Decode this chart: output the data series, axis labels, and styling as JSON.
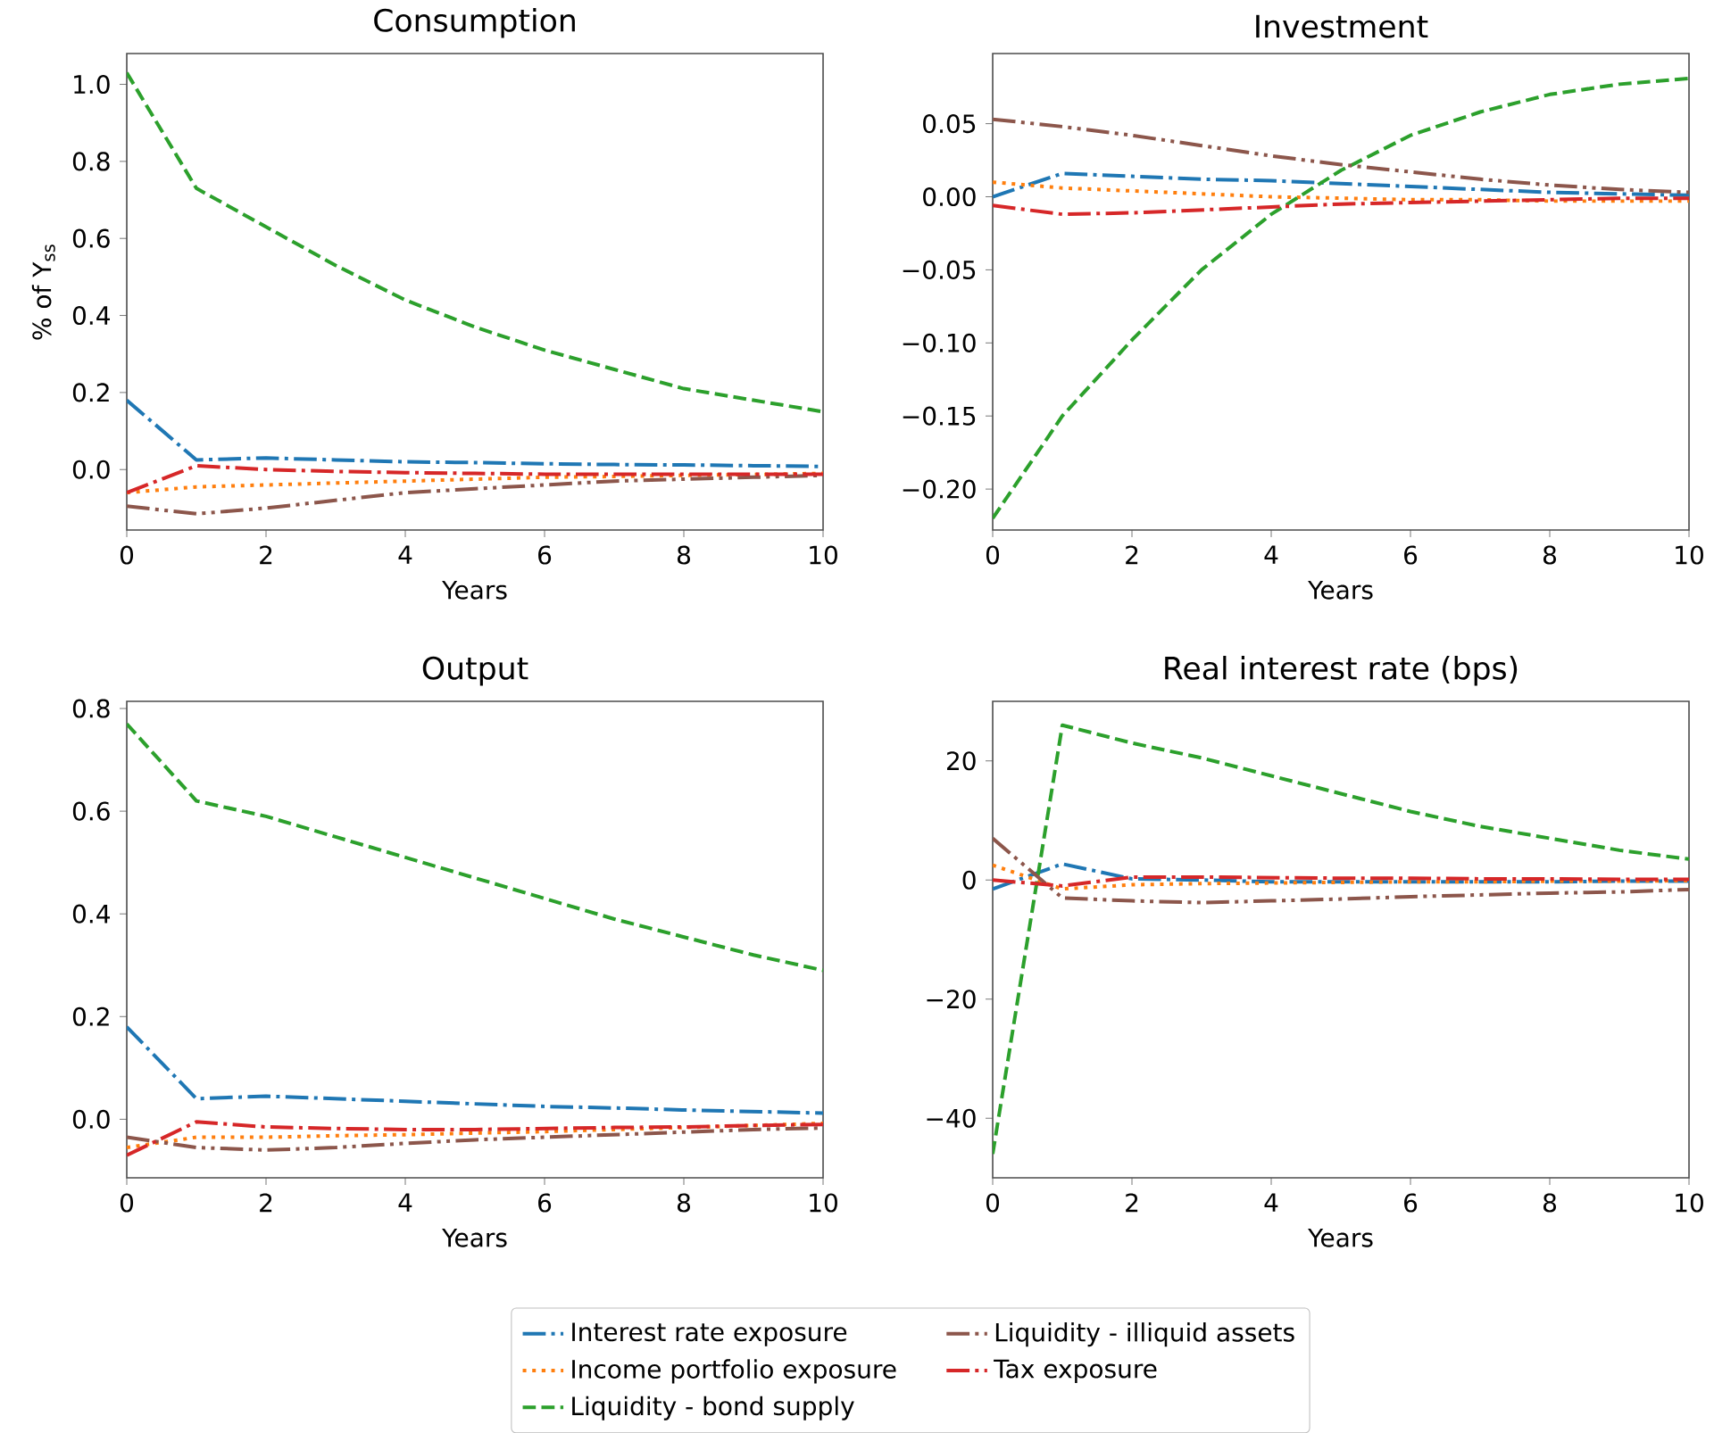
{
  "chart_data": [
    {
      "type": "line",
      "title": "Consumption",
      "xlabel": "Years",
      "ylabel": "% of Y$_{ss}$",
      "legend": "bottom",
      "x": [
        0,
        1,
        2,
        3,
        4,
        5,
        6,
        7,
        8,
        9,
        10
      ],
      "xlim": [
        0,
        10
      ],
      "xticks": [
        0,
        2,
        4,
        6,
        8,
        10
      ],
      "ylim": [
        -0.157,
        1.08
      ],
      "yticks": [
        {
          "value": 0,
          "label": "0.0"
        },
        {
          "value": 0.2,
          "label": "0.2"
        },
        {
          "value": 0.4,
          "label": "0.4"
        },
        {
          "value": 0.6,
          "label": "0.6"
        },
        {
          "value": 0.8,
          "label": "0.8"
        },
        {
          "value": 1.0,
          "label": "1.0"
        }
      ],
      "series": [
        {
          "name": "Interest rate exposure",
          "color": "#1f77b4",
          "line_style": "dashdot",
          "values": [
            0.18,
            0.025,
            0.03,
            0.025,
            0.02,
            0.018,
            0.015,
            0.013,
            0.012,
            0.01,
            0.008
          ]
        },
        {
          "name": "Income portfolio exposure",
          "color": "#ff7f0e",
          "line_style": "dotted",
          "values": [
            -0.06,
            -0.045,
            -0.04,
            -0.035,
            -0.03,
            -0.025,
            -0.02,
            -0.018,
            -0.015,
            -0.013,
            -0.01
          ]
        },
        {
          "name": "Liquidity - bond supply",
          "color": "#2ca02c",
          "line_style": "dashed",
          "values": [
            1.03,
            0.73,
            0.63,
            0.53,
            0.44,
            0.37,
            0.31,
            0.26,
            0.21,
            0.18,
            0.15
          ]
        },
        {
          "name": "Liquidity - illiquid assets",
          "color": "#8c564b",
          "line_style": "dashdotdot",
          "values": [
            -0.095,
            -0.115,
            -0.1,
            -0.08,
            -0.06,
            -0.05,
            -0.04,
            -0.03,
            -0.025,
            -0.02,
            -0.015
          ]
        },
        {
          "name": "Tax exposure",
          "color": "#d62728",
          "line_style": "dashdot",
          "values": [
            -0.06,
            0.01,
            0.0,
            -0.005,
            -0.008,
            -0.01,
            -0.012,
            -0.012,
            -0.012,
            -0.012,
            -0.012
          ]
        }
      ]
    },
    {
      "type": "line",
      "title": "Investment",
      "xlabel": "Years",
      "x": [
        0,
        1,
        2,
        3,
        4,
        5,
        6,
        7,
        8,
        9,
        10
      ],
      "xlim": [
        0,
        10
      ],
      "xticks": [
        0,
        2,
        4,
        6,
        8,
        10
      ],
      "ylim": [
        -0.228,
        0.098
      ],
      "yticks": [
        {
          "value": -0.2,
          "label": "−0.20"
        },
        {
          "value": -0.15,
          "label": "−0.15"
        },
        {
          "value": -0.1,
          "label": "−0.10"
        },
        {
          "value": -0.05,
          "label": "−0.05"
        },
        {
          "value": 0,
          "label": "0.00"
        },
        {
          "value": 0.05,
          "label": "0.05"
        }
      ],
      "series": [
        {
          "color": "#1f77b4",
          "line_style": "dashdot",
          "values": [
            0.0,
            0.016,
            0.014,
            0.012,
            0.011,
            0.009,
            0.007,
            0.005,
            0.003,
            0.002,
            0.001
          ]
        },
        {
          "color": "#ff7f0e",
          "line_style": "dotted",
          "values": [
            0.01,
            0.006,
            0.004,
            0.002,
            0.0,
            -0.001,
            -0.002,
            -0.002,
            -0.003,
            -0.003,
            -0.003
          ]
        },
        {
          "color": "#2ca02c",
          "line_style": "dashed",
          "values": [
            -0.22,
            -0.15,
            -0.098,
            -0.05,
            -0.012,
            0.018,
            0.042,
            0.058,
            0.07,
            0.077,
            0.081
          ]
        },
        {
          "color": "#8c564b",
          "line_style": "dashdotdot",
          "values": [
            0.053,
            0.048,
            0.042,
            0.035,
            0.028,
            0.022,
            0.017,
            0.012,
            0.008,
            0.005,
            0.003
          ]
        },
        {
          "color": "#d62728",
          "line_style": "dashdot",
          "values": [
            -0.006,
            -0.012,
            -0.011,
            -0.009,
            -0.007,
            -0.005,
            -0.004,
            -0.003,
            -0.002,
            -0.001,
            -0.001
          ]
        }
      ]
    },
    {
      "type": "line",
      "title": "Output",
      "xlabel": "Years",
      "x": [
        0,
        1,
        2,
        3,
        4,
        5,
        6,
        7,
        8,
        9,
        10
      ],
      "xlim": [
        0,
        10
      ],
      "xticks": [
        0,
        2,
        4,
        6,
        8,
        10
      ],
      "ylim": [
        -0.114,
        0.814
      ],
      "yticks": [
        {
          "value": 0,
          "label": "0.0"
        },
        {
          "value": 0.2,
          "label": "0.2"
        },
        {
          "value": 0.4,
          "label": "0.4"
        },
        {
          "value": 0.6,
          "label": "0.6"
        },
        {
          "value": 0.8,
          "label": "0.8"
        }
      ],
      "series": [
        {
          "color": "#1f77b4",
          "line_style": "dashdot",
          "values": [
            0.18,
            0.04,
            0.045,
            0.04,
            0.035,
            0.03,
            0.025,
            0.022,
            0.018,
            0.015,
            0.012
          ]
        },
        {
          "color": "#ff7f0e",
          "line_style": "dotted",
          "values": [
            -0.055,
            -0.035,
            -0.035,
            -0.032,
            -0.03,
            -0.027,
            -0.024,
            -0.02,
            -0.016,
            -0.012,
            -0.008
          ]
        },
        {
          "color": "#2ca02c",
          "line_style": "dashed",
          "values": [
            0.77,
            0.62,
            0.59,
            0.55,
            0.51,
            0.47,
            0.43,
            0.39,
            0.355,
            0.32,
            0.29
          ]
        },
        {
          "color": "#8c564b",
          "line_style": "dashdotdot",
          "values": [
            -0.035,
            -0.055,
            -0.06,
            -0.055,
            -0.047,
            -0.04,
            -0.035,
            -0.03,
            -0.025,
            -0.02,
            -0.017
          ]
        },
        {
          "color": "#d62728",
          "line_style": "dashdot",
          "values": [
            -0.07,
            -0.005,
            -0.015,
            -0.018,
            -0.02,
            -0.02,
            -0.018,
            -0.016,
            -0.015,
            -0.012,
            -0.01
          ]
        }
      ]
    },
    {
      "type": "line",
      "title": "Real interest rate (bps)",
      "xlabel": "Years",
      "x": [
        0,
        1,
        2,
        3,
        4,
        5,
        6,
        7,
        8,
        9,
        10
      ],
      "xlim": [
        0,
        10
      ],
      "xticks": [
        0,
        2,
        4,
        6,
        8,
        10
      ],
      "ylim": [
        -50,
        30
      ],
      "yticks": [
        {
          "value": -40,
          "label": "−40"
        },
        {
          "value": -20,
          "label": "−20"
        },
        0,
        20
      ],
      "series": [
        {
          "color": "#1f77b4",
          "line_style": "dashdot",
          "values": [
            -1.5,
            2.7,
            0.2,
            0,
            -0.3,
            -0.3,
            -0.3,
            -0.3,
            -0.3,
            -0.2,
            -0.2
          ]
        },
        {
          "color": "#ff7f0e",
          "line_style": "dotted",
          "values": [
            2.5,
            -1.5,
            -0.8,
            -0.6,
            -0.5,
            -0.4,
            -0.3,
            -0.3,
            -0.2,
            -0.2,
            -0.1
          ]
        },
        {
          "color": "#2ca02c",
          "line_style": "dashed",
          "values": [
            -46,
            26,
            23,
            20.5,
            17.5,
            14.5,
            11.5,
            9,
            7,
            5,
            3.5
          ]
        },
        {
          "color": "#8c564b",
          "line_style": "dashdotdot",
          "values": [
            7,
            -3,
            -3.5,
            -3.8,
            -3.5,
            -3.2,
            -2.8,
            -2.5,
            -2.2,
            -2,
            -1.6
          ]
        },
        {
          "color": "#d62728",
          "line_style": "dashdot",
          "values": [
            0,
            -1.0,
            0.5,
            0.5,
            0.4,
            0.3,
            0.3,
            0.2,
            0.2,
            0.1,
            0.1
          ]
        }
      ]
    }
  ]
}
